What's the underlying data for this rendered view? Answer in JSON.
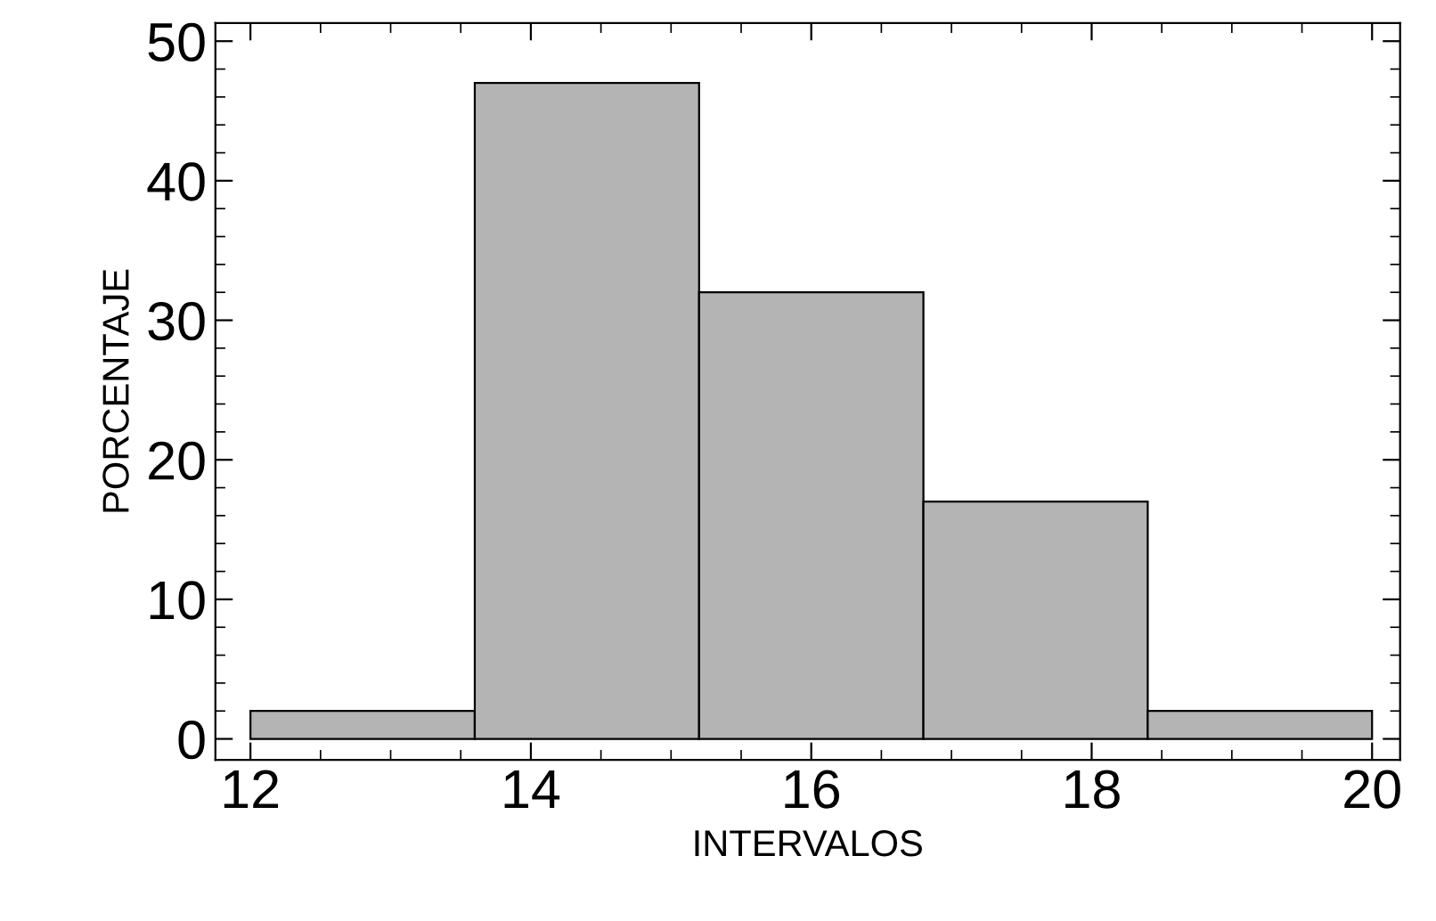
{
  "chart_data": {
    "type": "histogram",
    "xlabel": "INTERVALOS",
    "ylabel": "PORCENTAJE",
    "bins": [
      12,
      13.6,
      15.2,
      16.8,
      18.4,
      20
    ],
    "values": [
      2,
      47,
      32,
      17,
      2
    ],
    "color": "#b4b4b4",
    "xlim": [
      11.75,
      20.2
    ],
    "xticks": [
      12,
      14,
      16,
      18,
      20
    ],
    "ylim": [
      -1.5,
      51.3
    ],
    "yticks": [
      0,
      10,
      20,
      30,
      40,
      50
    ],
    "grid": false
  }
}
